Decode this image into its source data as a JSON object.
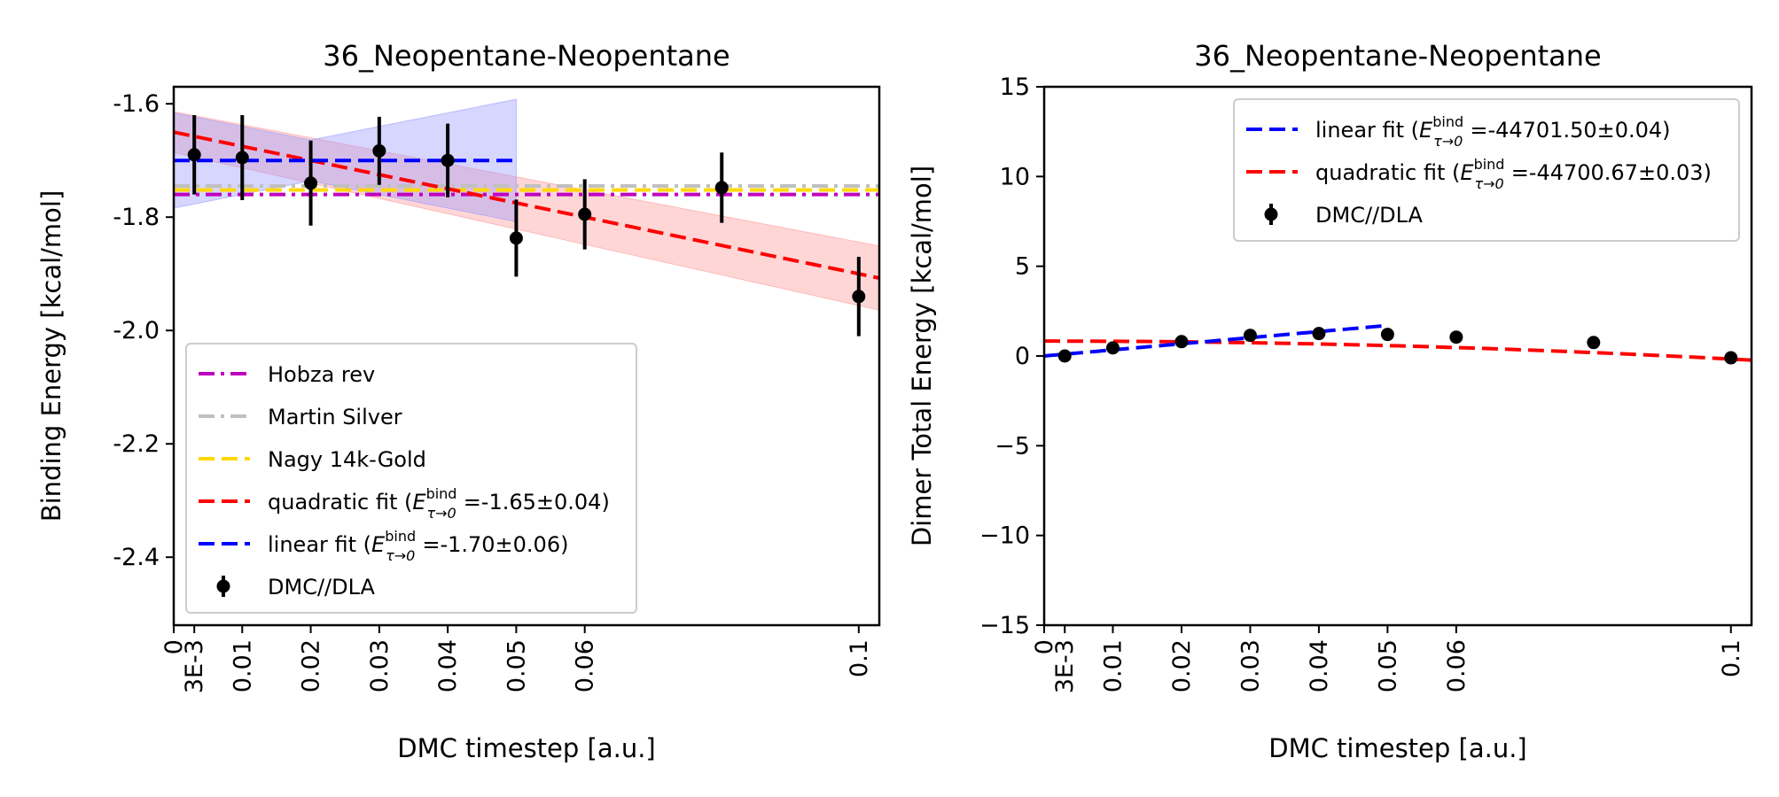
{
  "chart_data": [
    {
      "type": "line",
      "title": "36_Neopentane-Neopentane",
      "xlabel": "DMC timestep [a.u.]",
      "ylabel": "Binding Energy [kcal/mol]",
      "xlim": [
        0,
        0.103
      ],
      "ylim": [
        -2.52,
        -1.57
      ],
      "xticks": [
        {
          "value": 0,
          "label": "0"
        },
        {
          "value": 0.003,
          "label": "3E-3"
        },
        {
          "value": 0.01,
          "label": "0.01"
        },
        {
          "value": 0.02,
          "label": "0.02"
        },
        {
          "value": 0.03,
          "label": "0.03"
        },
        {
          "value": 0.04,
          "label": "0.04"
        },
        {
          "value": 0.05,
          "label": "0.05"
        },
        {
          "value": 0.06,
          "label": "0.06"
        },
        {
          "value": 0.1,
          "label": "0.1"
        }
      ],
      "yticks": [
        {
          "value": -1.6,
          "label": "-1.6"
        },
        {
          "value": -1.8,
          "label": "-1.8"
        },
        {
          "value": -2.0,
          "label": "-2.0"
        },
        {
          "value": -2.2,
          "label": "-2.2"
        },
        {
          "value": -2.4,
          "label": "-2.4"
        }
      ],
      "hlines": [
        {
          "name": "Hobza rev",
          "y": -1.76,
          "color": "#bf00bf",
          "dash": "dashdot"
        },
        {
          "name": "Martin Silver",
          "y": -1.745,
          "color": "#c0c0c0",
          "dash": "dashdot"
        },
        {
          "name": "Nagy 14k-Gold",
          "y": -1.752,
          "color": "#ffd700",
          "dash": "dashed"
        }
      ],
      "fits": [
        {
          "name": "quadratic fit",
          "kind": "quadratic",
          "coeffs": [
            -1.65,
            -2.5,
            0
          ],
          "xrange": [
            0,
            0.103
          ],
          "band": 0.04,
          "color": "#ff0000",
          "band_color": "#ff9999"
        },
        {
          "name": "linear fit",
          "kind": "linear",
          "coeffs": [
            -1.7,
            0,
            0
          ],
          "xrange": [
            0,
            0.05
          ],
          "band": 0.06,
          "color": "#0000ff",
          "band_color": "#9999ff"
        }
      ],
      "points": {
        "name": "DMC//DLA",
        "color": "#000000",
        "x": [
          0.003,
          0.01,
          0.02,
          0.03,
          0.04,
          0.05,
          0.06,
          0.08,
          0.1
        ],
        "y": [
          -1.69,
          -1.695,
          -1.74,
          -1.683,
          -1.7,
          -1.837,
          -1.795,
          -1.748,
          -1.94
        ],
        "err": [
          0.07,
          0.075,
          0.075,
          0.06,
          0.065,
          0.068,
          0.062,
          0.062,
          0.07
        ]
      },
      "legend": {
        "position": "lower-left",
        "entries": [
          {
            "kind": "dashdot",
            "color": "#bf00bf",
            "text": "Hobza rev"
          },
          {
            "kind": "dashdot",
            "color": "#c0c0c0",
            "text": "Martin Silver"
          },
          {
            "kind": "dashed",
            "color": "#ffd700",
            "text": "Nagy 14k-Gold"
          },
          {
            "kind": "dashed",
            "color": "#ff0000",
            "text": "quadratic fit (",
            "sym": "E",
            "sup": "bind",
            "sub": "τ→0",
            "tail": "=-1.65±0.04)"
          },
          {
            "kind": "dashed",
            "color": "#0000ff",
            "text": "linear fit (",
            "sym": "E",
            "sup": "bind",
            "sub": "τ→0",
            "tail": "=-1.70±0.06)"
          },
          {
            "kind": "errorpoint",
            "color": "#000000",
            "text": "DMC//DLA"
          }
        ]
      }
    },
    {
      "type": "line",
      "title": "36_Neopentane-Neopentane",
      "xlabel": "DMC timestep [a.u.]",
      "ylabel": "Dimer Total Energy [kcal/mol]",
      "xlim": [
        0,
        0.103
      ],
      "ylim": [
        -15,
        15
      ],
      "xticks": [
        {
          "value": 0,
          "label": "0"
        },
        {
          "value": 0.003,
          "label": "3E-3"
        },
        {
          "value": 0.01,
          "label": "0.01"
        },
        {
          "value": 0.02,
          "label": "0.02"
        },
        {
          "value": 0.03,
          "label": "0.03"
        },
        {
          "value": 0.04,
          "label": "0.04"
        },
        {
          "value": 0.05,
          "label": "0.05"
        },
        {
          "value": 0.06,
          "label": "0.06"
        },
        {
          "value": 0.1,
          "label": "0.1"
        }
      ],
      "yticks": [
        {
          "value": 15,
          "label": "15"
        },
        {
          "value": 10,
          "label": "10"
        },
        {
          "value": 5,
          "label": "5"
        },
        {
          "value": 0,
          "label": "0"
        },
        {
          "value": -5,
          "label": "−5"
        },
        {
          "value": -10,
          "label": "−10"
        },
        {
          "value": -15,
          "label": "−15"
        }
      ],
      "hlines": [],
      "fits": [
        {
          "name": "quadratic fit",
          "kind": "quadratic",
          "coeffs": [
            0.83,
            0,
            -100
          ],
          "xrange": [
            0,
            0.103
          ],
          "band": 0,
          "color": "#ff0000",
          "band_color": "#ff9999"
        },
        {
          "name": "linear fit",
          "kind": "linear",
          "coeffs": [
            0.0,
            34,
            0
          ],
          "xrange": [
            0,
            0.05
          ],
          "band": 0,
          "color": "#0000ff",
          "band_color": "#9999ff"
        }
      ],
      "points": {
        "name": "DMC//DLA",
        "color": "#000000",
        "x": [
          0.003,
          0.01,
          0.02,
          0.03,
          0.04,
          0.05,
          0.06,
          0.08,
          0.1
        ],
        "y": [
          0.0,
          0.45,
          0.8,
          1.15,
          1.25,
          1.2,
          1.05,
          0.75,
          -0.1
        ],
        "err": [
          0.1,
          0.1,
          0.1,
          0.1,
          0.1,
          0.1,
          0.1,
          0.1,
          0.1
        ]
      },
      "legend": {
        "position": "upper-right",
        "entries": [
          {
            "kind": "dashed",
            "color": "#0000ff",
            "text": "linear fit (",
            "sym": "E",
            "sup": "bind",
            "sub": "τ→0",
            "tail": "=-44701.50±0.04)"
          },
          {
            "kind": "dashed",
            "color": "#ff0000",
            "text": "quadratic fit (",
            "sym": "E",
            "sup": "bind",
            "sub": "τ→0",
            "tail": "=-44700.67±0.03)"
          },
          {
            "kind": "errorpoint",
            "color": "#000000",
            "text": "DMC//DLA"
          }
        ]
      }
    }
  ]
}
